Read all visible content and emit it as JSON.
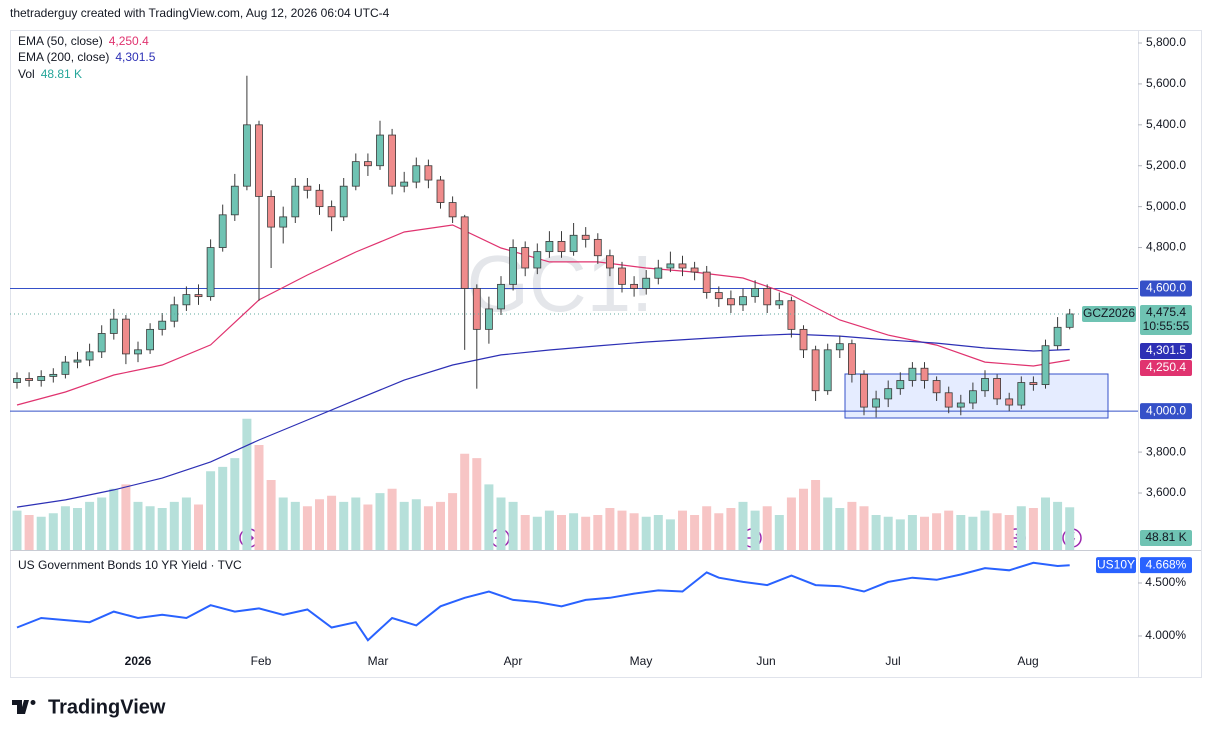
{
  "header": "thetraderguy created with TradingView.com, Aug 12, 2026 06:04 UTC-4",
  "chart_data": {
    "type": "candlestick",
    "watermark": "GC1!",
    "symbol": "GCZ2026",
    "open": [
      4140,
      4160,
      4150,
      4170,
      4180,
      4240,
      4250,
      4290,
      4380,
      4450,
      4280,
      4300,
      4400,
      4440,
      4520,
      4570,
      4560,
      4800,
      4960,
      5100,
      5400,
      5050,
      4900,
      4950,
      5100,
      5080,
      5000,
      4950,
      5100,
      5220,
      5200,
      5350,
      5100,
      5120,
      5200,
      5130,
      5020,
      4950,
      4600,
      4400,
      4500,
      4620,
      4800,
      4700,
      4780,
      4830,
      4780,
      4860,
      4840,
      4760,
      4700,
      4620,
      4600,
      4650,
      4700,
      4720,
      4700,
      4680,
      4580,
      4550,
      4520,
      4560,
      4600,
      4520,
      4540,
      4400,
      4300,
      4100,
      4300,
      4330,
      4180,
      4020,
      4060,
      4110,
      4150,
      4210,
      4150,
      4090,
      4020,
      4040,
      4100,
      4160,
      4060,
      4030,
      4140,
      4130,
      4320,
      4410
    ],
    "high": [
      4190,
      4190,
      4200,
      4210,
      4270,
      4290,
      4330,
      4420,
      4500,
      4470,
      4340,
      4430,
      4480,
      4560,
      4610,
      4620,
      4840,
      5010,
      5160,
      5640,
      5420,
      5080,
      5000,
      5140,
      5140,
      5110,
      5030,
      5140,
      5260,
      5260,
      5420,
      5380,
      5170,
      5240,
      5230,
      5150,
      5050,
      4960,
      4620,
      4560,
      4660,
      4840,
      4830,
      4820,
      4880,
      4880,
      4920,
      4900,
      4870,
      4790,
      4730,
      4660,
      4690,
      4740,
      4780,
      4760,
      4730,
      4710,
      4610,
      4590,
      4600,
      4640,
      4620,
      4580,
      4560,
      4420,
      4320,
      4330,
      4370,
      4350,
      4200,
      4100,
      4150,
      4190,
      4240,
      4240,
      4170,
      4120,
      4080,
      4140,
      4200,
      4180,
      4090,
      4170,
      4170,
      4350,
      4460,
      4500
    ],
    "low": [
      4110,
      4120,
      4120,
      4140,
      4160,
      4210,
      4220,
      4260,
      4350,
      4230,
      4240,
      4280,
      4370,
      4410,
      4490,
      4520,
      4540,
      4780,
      4930,
      5080,
      4540,
      4700,
      4820,
      4920,
      5040,
      4960,
      4880,
      4930,
      5080,
      5150,
      5180,
      5060,
      5070,
      5090,
      5090,
      4990,
      4920,
      4300,
      4110,
      4330,
      4470,
      4590,
      4660,
      4670,
      4750,
      4750,
      4760,
      4800,
      4720,
      4660,
      4580,
      4560,
      4570,
      4620,
      4680,
      4660,
      4640,
      4550,
      4510,
      4480,
      4490,
      4530,
      4480,
      4500,
      4360,
      4260,
      4050,
      4080,
      4260,
      4140,
      3980,
      3970,
      4020,
      4080,
      4120,
      4110,
      4050,
      3990,
      3980,
      4010,
      4070,
      4030,
      4000,
      4010,
      4100,
      4110,
      4300,
      4400
    ],
    "close": [
      4160,
      4150,
      4170,
      4180,
      4240,
      4250,
      4290,
      4380,
      4450,
      4280,
      4300,
      4400,
      4440,
      4520,
      4570,
      4560,
      4800,
      4960,
      5100,
      5400,
      5050,
      4900,
      4950,
      5100,
      5080,
      5000,
      4950,
      5100,
      5220,
      5200,
      5350,
      5100,
      5120,
      5200,
      5130,
      5020,
      4950,
      4600,
      4400,
      4500,
      4620,
      4800,
      4700,
      4780,
      4830,
      4780,
      4860,
      4840,
      4760,
      4700,
      4620,
      4600,
      4650,
      4700,
      4720,
      4700,
      4680,
      4580,
      4550,
      4520,
      4560,
      4600,
      4520,
      4540,
      4400,
      4300,
      4100,
      4300,
      4330,
      4180,
      4020,
      4060,
      4110,
      4150,
      4210,
      4150,
      4090,
      4020,
      4040,
      4100,
      4160,
      4060,
      4030,
      4140,
      4130,
      4320,
      4410,
      4475.4
    ],
    "last_price_label": "4,475.4",
    "countdown": "10:55:55",
    "up_color": "#6fc3b3",
    "down_color": "#ef8b8b",
    "ylim": [
      3321.3,
      5863.6
    ],
    "yticks": [
      {
        "value": 5800,
        "label": "5,800.0"
      },
      {
        "value": 5600,
        "label": "5,600.0"
      },
      {
        "value": 5400,
        "label": "5,400.0"
      },
      {
        "value": 5200,
        "label": "5,200.0"
      },
      {
        "value": 5000,
        "label": "5,000.0"
      },
      {
        "value": 4800,
        "label": "4,800.0"
      },
      {
        "value": 3800,
        "label": "3,800.0"
      },
      {
        "value": 3600,
        "label": "3,600.0"
      }
    ],
    "hlines": [
      {
        "value": 4600,
        "label": "4,600.0"
      },
      {
        "value": 4000,
        "label": "4,000.0"
      }
    ],
    "hline_color": "#3550c8",
    "ema": [
      {
        "name": "EMA (50, close)",
        "color": "#e0336f",
        "value_label": "4,250.4",
        "x": [
          0,
          4,
          8,
          12,
          16,
          20,
          24,
          28,
          32,
          36,
          40,
          44,
          48,
          52,
          56,
          60,
          64,
          68,
          72,
          76,
          80,
          84,
          87
        ],
        "values": [
          4030,
          4094,
          4177,
          4226,
          4324,
          4544,
          4666,
          4778,
          4876,
          4910,
          4798,
          4730,
          4730,
          4700,
          4680,
          4651,
          4568,
          4446,
          4372,
          4323,
          4240,
          4221,
          4250.4
        ]
      },
      {
        "name": "EMA (200, close)",
        "color": "#2d30b5",
        "value_label": "4,301.5",
        "x": [
          0,
          4,
          8,
          12,
          16,
          20,
          24,
          28,
          32,
          36,
          40,
          44,
          48,
          52,
          56,
          60,
          64,
          68,
          72,
          76,
          80,
          84,
          87
        ],
        "values": [
          3531,
          3566,
          3615,
          3673,
          3752,
          3859,
          3957,
          4055,
          4152,
          4226,
          4275,
          4299,
          4319,
          4338,
          4353,
          4367,
          4377,
          4367,
          4348,
          4333,
          4309,
          4294,
          4301.5
        ]
      }
    ],
    "volume": {
      "name": "Vol",
      "value_label": "48.81 K",
      "ylim": [
        0,
        200
      ],
      "up_color": "#b6e0da",
      "down_color": "#f7c5c5",
      "values": [
        45,
        40,
        38,
        42,
        50,
        48,
        55,
        60,
        70,
        75,
        55,
        50,
        48,
        55,
        60,
        52,
        90,
        95,
        105,
        150,
        120,
        80,
        60,
        55,
        50,
        58,
        62,
        55,
        60,
        52,
        65,
        70,
        55,
        58,
        50,
        55,
        65,
        110,
        105,
        75,
        60,
        55,
        40,
        38,
        45,
        40,
        42,
        38,
        40,
        48,
        45,
        42,
        38,
        40,
        35,
        45,
        40,
        50,
        42,
        48,
        55,
        45,
        50,
        40,
        60,
        70,
        80,
        60,
        48,
        55,
        50,
        40,
        38,
        35,
        40,
        38,
        42,
        45,
        40,
        38,
        45,
        42,
        40,
        50,
        48,
        60,
        55,
        48.81
      ]
    },
    "xaxis_labels": [
      "2026",
      "Feb",
      "Mar",
      "Apr",
      "May",
      "Jun",
      "Jul",
      "Aug"
    ]
  },
  "yield_chart": {
    "type": "line",
    "title": "US Government Bonds 10 YR Yield · TVC",
    "symbol": "US10Y",
    "color": "#2962ff",
    "x": [
      0,
      2,
      4,
      6,
      8,
      10,
      12,
      14,
      16,
      18,
      20,
      22,
      24,
      26,
      28,
      29,
      31,
      33,
      35,
      37,
      39,
      41,
      43,
      45,
      47,
      49,
      51,
      53,
      55,
      57,
      58,
      60,
      62,
      64,
      66,
      68,
      70,
      72,
      74,
      76,
      78,
      80,
      82,
      84,
      86,
      87
    ],
    "values": [
      4.08,
      4.17,
      4.15,
      4.13,
      4.23,
      4.17,
      4.2,
      4.17,
      4.29,
      4.23,
      4.26,
      4.2,
      4.25,
      4.08,
      4.13,
      3.96,
      4.17,
      4.1,
      4.28,
      4.36,
      4.42,
      4.34,
      4.32,
      4.28,
      4.34,
      4.36,
      4.4,
      4.43,
      4.42,
      4.6,
      4.55,
      4.51,
      4.48,
      4.57,
      4.48,
      4.47,
      4.42,
      4.51,
      4.55,
      4.53,
      4.58,
      4.64,
      4.62,
      4.69,
      4.66,
      4.668
    ],
    "value_label": "4.668%",
    "ylim": [
      3.613,
      4.764
    ],
    "yticks": [
      {
        "value": 4.5,
        "label": "4.500%"
      },
      {
        "value": 4,
        "label": "4.000%"
      }
    ]
  },
  "footer": "TradingView"
}
